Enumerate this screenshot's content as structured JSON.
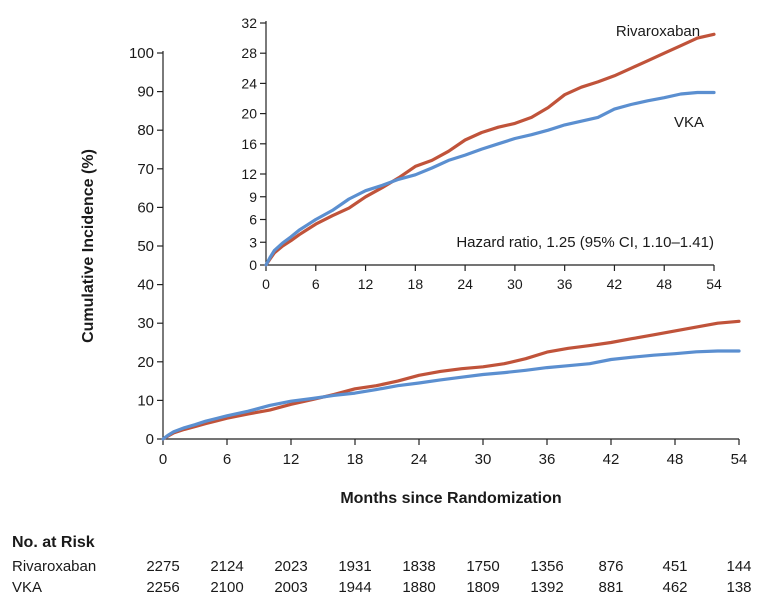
{
  "chart_data": [
    {
      "type": "line",
      "panel": "main",
      "xlabel": "Months since Randomization",
      "ylabel": "Cumulative Incidence (%)",
      "xlim": [
        0,
        54
      ],
      "ylim": [
        0,
        100
      ],
      "x_ticks": [
        0,
        6,
        12,
        18,
        24,
        30,
        36,
        42,
        48,
        54
      ],
      "y_ticks": [
        0,
        10,
        20,
        30,
        40,
        50,
        60,
        70,
        80,
        90,
        100
      ],
      "grid": false,
      "series": [
        {
          "name": "Rivaroxaban",
          "color": "#c0533a",
          "x": [
            0,
            0.5,
            1,
            2,
            3,
            4,
            5,
            6,
            8,
            10,
            12,
            14,
            16,
            18,
            20,
            22,
            24,
            26,
            28,
            30,
            32,
            34,
            36,
            38,
            40,
            42,
            44,
            46,
            48,
            50,
            52,
            54
          ],
          "y": [
            0,
            0.8,
            1.6,
            2.5,
            3.2,
            4.0,
            4.7,
            5.4,
            6.5,
            7.5,
            9.0,
            10.2,
            11.5,
            13.0,
            13.8,
            15.0,
            16.5,
            17.5,
            18.2,
            18.7,
            19.5,
            20.8,
            22.5,
            23.5,
            24.2,
            25.0,
            26.0,
            27.0,
            28.0,
            29.0,
            30.0,
            30.5
          ]
        },
        {
          "name": "VKA",
          "color": "#5b8fd0",
          "x": [
            0,
            0.5,
            1,
            2,
            3,
            4,
            5,
            6,
            8,
            10,
            12,
            14,
            16,
            18,
            20,
            22,
            24,
            26,
            28,
            30,
            32,
            34,
            36,
            38,
            40,
            42,
            44,
            46,
            48,
            50,
            52,
            54
          ],
          "y": [
            0,
            1.0,
            1.9,
            2.9,
            3.7,
            4.6,
            5.3,
            6.0,
            7.2,
            8.7,
            9.8,
            10.5,
            11.3,
            11.9,
            12.8,
            13.8,
            14.5,
            15.3,
            16.0,
            16.7,
            17.2,
            17.8,
            18.5,
            19.0,
            19.5,
            20.6,
            21.2,
            21.7,
            22.1,
            22.6,
            22.8,
            22.8
          ]
        }
      ]
    },
    {
      "type": "line",
      "panel": "inset",
      "xlim": [
        0,
        54
      ],
      "ylim": [
        0,
        32
      ],
      "x_ticks": [
        0,
        6,
        12,
        18,
        24,
        30,
        36,
        42,
        48,
        54
      ],
      "y_ticks": [
        0,
        3,
        6,
        9,
        12,
        16,
        20,
        24,
        28,
        32
      ],
      "annotation": "Hazard ratio, 1.25 (95% CI, 1.10–1.41)",
      "series_labels": [
        "Rivaroxaban",
        "VKA"
      ]
    }
  ],
  "risk_table": {
    "title": "No. at Risk",
    "rows": [
      {
        "label": "Rivaroxaban",
        "values": [
          "2275",
          "2124",
          "2023",
          "1931",
          "1838",
          "1750",
          "1356",
          "876",
          "451",
          "144"
        ]
      },
      {
        "label": "VKA",
        "values": [
          "2256",
          "2100",
          "2003",
          "1944",
          "1880",
          "1809",
          "1392",
          "881",
          "462",
          "138"
        ]
      }
    ]
  }
}
